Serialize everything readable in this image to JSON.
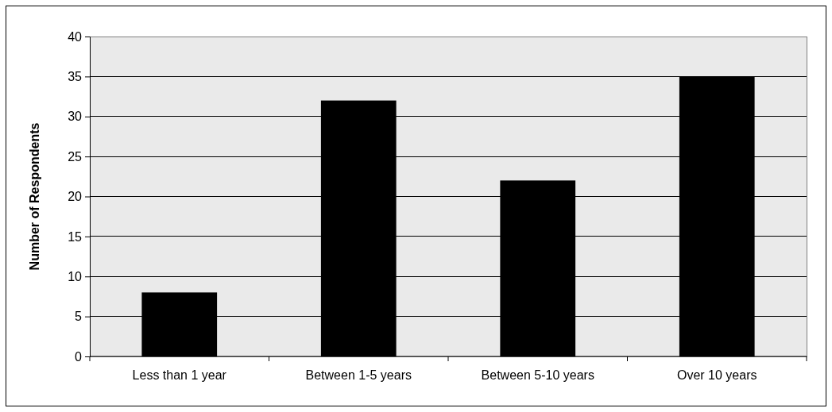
{
  "chart_data": {
    "type": "bar",
    "ylabel": "Number of Respondents",
    "categories": [
      "Less than 1 year",
      "Between 1-5 years",
      "Between 5-10 years",
      "Over 10 years"
    ],
    "values": [
      8,
      32,
      22,
      35
    ],
    "color": "#000000",
    "ylim": [
      0,
      40
    ],
    "yticks": [
      0,
      5,
      10,
      15,
      20,
      25,
      30,
      35,
      40
    ],
    "grid": "y"
  }
}
